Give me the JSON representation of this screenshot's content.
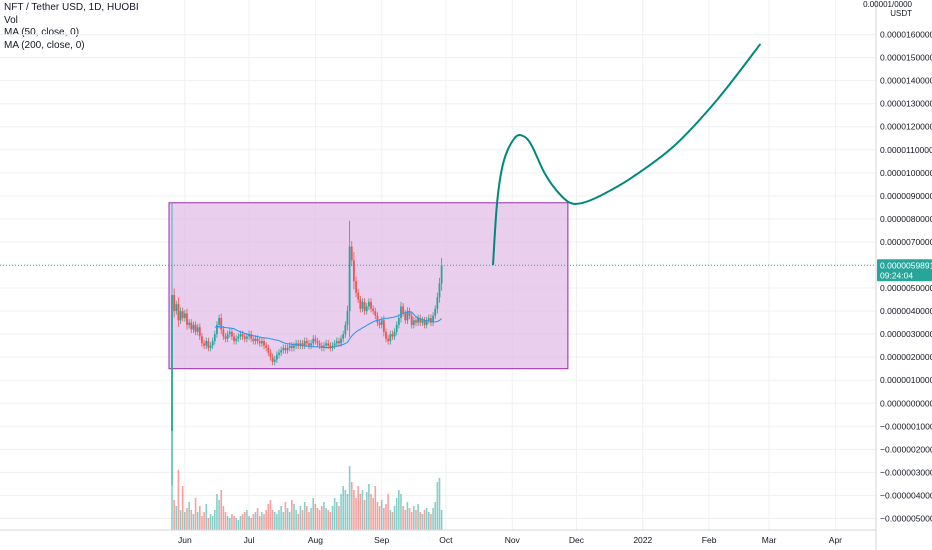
{
  "legend": {
    "symbol_line": "NFT / Tether USD, 1D, HUOBI",
    "vol": "Vol",
    "ma50": "MA (50, close, 0)",
    "ma200": "MA (200, close, 0)"
  },
  "colors": {
    "up": "#26a69a",
    "down": "#ef5350",
    "ma": "#2196f3",
    "projection": "#00897b",
    "box_fill": "#e1bee7",
    "box_stroke": "#9c27b0",
    "price_tag": "#26a69a",
    "grid": "#eef0f3"
  },
  "chart_data": {
    "type": "candlestick",
    "symbol": "NFT / Tether USD",
    "interval": "1D",
    "exchange": "HUOBI",
    "y_unit": "USDT",
    "y_axis_title": "0.00001/0000",
    "ylim": [
      -5.5e-06,
      1.75e-05
    ],
    "y_ticks": [
      {
        "value": 1.6e-05,
        "label": "0.0000160000"
      },
      {
        "value": 1.5e-05,
        "label": "0.0000150000"
      },
      {
        "value": 1.4e-05,
        "label": "0.0000140000"
      },
      {
        "value": 1.3e-05,
        "label": "0.0000130000"
      },
      {
        "value": 1.2e-05,
        "label": "0.0000120000"
      },
      {
        "value": 1.1e-05,
        "label": "0.0000110000"
      },
      {
        "value": 1e-05,
        "label": "0.0000100000"
      },
      {
        "value": 9e-06,
        "label": "0.0000090000"
      },
      {
        "value": 8e-06,
        "label": "0.0000080000"
      },
      {
        "value": 7e-06,
        "label": "0.0000070000"
      },
      {
        "value": 5e-06,
        "label": "0.0000050000"
      },
      {
        "value": 4e-06,
        "label": "0.0000040000"
      },
      {
        "value": 3e-06,
        "label": "0.0000030000"
      },
      {
        "value": 2e-06,
        "label": "0.0000020000"
      },
      {
        "value": 1e-06,
        "label": "0.0000010000"
      },
      {
        "value": 0.0,
        "label": "0.0000000000"
      },
      {
        "value": -1e-06,
        "label": "−0.0000010000"
      },
      {
        "value": -2e-06,
        "label": "−0.0000020000"
      },
      {
        "value": -3e-06,
        "label": "−0.0000030000"
      },
      {
        "value": -4e-06,
        "label": "−0.0000040000"
      },
      {
        "value": -5e-06,
        "label": "−0.0000050000"
      }
    ],
    "x_ticks": [
      {
        "label": "Jun",
        "day": 6
      },
      {
        "label": "Jul",
        "day": 36
      },
      {
        "label": "Aug",
        "day": 67
      },
      {
        "label": "Sep",
        "day": 98
      },
      {
        "label": "Oct",
        "day": 128
      },
      {
        "label": "Nov",
        "day": 159
      },
      {
        "label": "Dec",
        "day": 189
      },
      {
        "label": "2022",
        "day": 220
      },
      {
        "label": "Feb",
        "day": 251
      },
      {
        "label": "Mar",
        "day": 279
      },
      {
        "label": "Apr",
        "day": 310
      }
    ],
    "last_price": {
      "value": 5.9891e-06,
      "label": "0.0000059891",
      "countdown": "09:24:04"
    },
    "closes": [
      4.7e-06,
      4e-06,
      4.3e-06,
      3.6e-06,
      4e-06,
      3.7e-06,
      3.9e-06,
      3.4e-06,
      3.5e-06,
      3.2e-06,
      3.4e-06,
      3.1e-06,
      3.3e-06,
      2.9e-06,
      2.6e-06,
      2.5e-06,
      2.7e-06,
      2.4e-06,
      2.5e-06,
      2.7e-06,
      3e-06,
      3.4e-06,
      3.7e-06,
      3.2e-06,
      2.9e-06,
      2.8e-06,
      3e-06,
      3.1e-06,
      2.9e-06,
      2.7e-06,
      2.8e-06,
      2.9e-06,
      3e-06,
      2.9e-06,
      2.8e-06,
      2.9e-06,
      3e-06,
      2.8e-06,
      2.7e-06,
      2.8e-06,
      2.7e-06,
      2.6e-06,
      2.7e-06,
      2.5e-06,
      2.4e-06,
      2.2e-06,
      2e-06,
      1.8e-06,
      1.9e-06,
      2.1e-06,
      2.2e-06,
      2.3e-06,
      2.4e-06,
      2.3e-06,
      2.4e-06,
      2.5e-06,
      2.4e-06,
      2.5e-06,
      2.6e-06,
      2.5e-06,
      2.6e-06,
      2.5e-06,
      2.7e-06,
      2.6e-06,
      2.5e-06,
      2.6e-06,
      2.8e-06,
      2.7e-06,
      2.6e-06,
      2.5e-06,
      2.4e-06,
      2.5e-06,
      2.6e-06,
      2.5e-06,
      2.4e-06,
      2.5e-06,
      2.6e-06,
      2.7e-06,
      2.6e-06,
      2.8e-06,
      3e-06,
      3.4e-06,
      4e-06,
      6.8e-06,
      6.2e-06,
      5.3e-06,
      4.8e-06,
      4.5e-06,
      4.1e-06,
      4.4e-06,
      4e-06,
      4.2e-06,
      4.4e-06,
      4.1e-06,
      4e-06,
      3.8e-06,
      3.5e-06,
      3.4e-06,
      3.6e-06,
      3.1e-06,
      2.8e-06,
      2.7e-06,
      3e-06,
      2.9e-06,
      3.1e-06,
      3.4e-06,
      3.7e-06,
      4.2e-06,
      3.9e-06,
      3.6e-06,
      4e-06,
      3.8e-06,
      3.4e-06,
      3.6e-06,
      3.5e-06,
      3.7e-06,
      3.5e-06,
      3.6e-06,
      3.4e-06,
      3.6e-06,
      3.7e-06,
      3.5e-06,
      3.8e-06,
      4.1e-06,
      4.6e-06,
      5.2e-06,
      5.9891e-06
    ],
    "volumes": [
      6.2,
      1.5,
      1.2,
      3.0,
      1.0,
      2.2,
      0.9,
      1.1,
      1.4,
      1.0,
      0.8,
      1.6,
      0.9,
      1.2,
      0.7,
      0.9,
      1.3,
      0.6,
      0.8,
      0.7,
      1.0,
      1.8,
      1.5,
      2.0,
      1.2,
      0.9,
      0.7,
      0.6,
      0.8,
      0.7,
      0.6,
      0.5,
      0.7,
      0.8,
      0.9,
      1.0,
      0.7,
      0.6,
      0.8,
      0.9,
      1.1,
      0.7,
      0.9,
      0.8,
      1.0,
      1.3,
      1.5,
      1.0,
      0.9,
      0.8,
      1.0,
      1.2,
      0.9,
      1.4,
      1.1,
      0.9,
      1.5,
      1.3,
      1.0,
      0.8,
      1.2,
      1.0,
      1.4,
      1.2,
      0.9,
      1.1,
      1.6,
      1.3,
      1.1,
      1.0,
      1.2,
      1.4,
      1.1,
      1.0,
      0.9,
      1.2,
      1.6,
      1.4,
      1.2,
      1.8,
      2.2,
      2.0,
      1.8,
      3.2,
      2.4,
      2.0,
      1.6,
      2.2,
      1.8,
      2.0,
      1.5,
      1.9,
      2.3,
      1.8,
      1.6,
      2.2,
      1.4,
      1.2,
      1.5,
      1.1,
      1.3,
      1.8,
      1.0,
      0.9,
      1.2,
      1.6,
      2.0,
      1.8,
      1.2,
      1.0,
      1.4,
      1.1,
      0.9,
      1.2,
      1.0,
      1.3,
      0.9,
      0.8,
      1.0,
      1.1,
      0.9,
      0.8,
      1.1,
      1.4,
      2.4,
      2.6,
      1.0
    ],
    "range_box": {
      "start_day": 0,
      "end_day": 185,
      "low": 1.5e-06,
      "high": 8.7e-06
    },
    "projection": [
      {
        "day": 150,
        "price": 6e-06
      },
      {
        "day": 152,
        "price": 8.8e-06
      },
      {
        "day": 155,
        "price": 1.05e-05
      },
      {
        "day": 160,
        "price": 1.15e-05
      },
      {
        "day": 164,
        "price": 1.16e-05
      },
      {
        "day": 168,
        "price": 1.12e-05
      },
      {
        "day": 174,
        "price": 1e-05
      },
      {
        "day": 180,
        "price": 9.2e-06
      },
      {
        "day": 186,
        "price": 8.7e-06
      },
      {
        "day": 192,
        "price": 8.7e-06
      },
      {
        "day": 200,
        "price": 9e-06
      },
      {
        "day": 215,
        "price": 9.8e-06
      },
      {
        "day": 235,
        "price": 1.12e-05
      },
      {
        "day": 255,
        "price": 1.32e-05
      },
      {
        "day": 275,
        "price": 1.56e-05
      }
    ]
  }
}
